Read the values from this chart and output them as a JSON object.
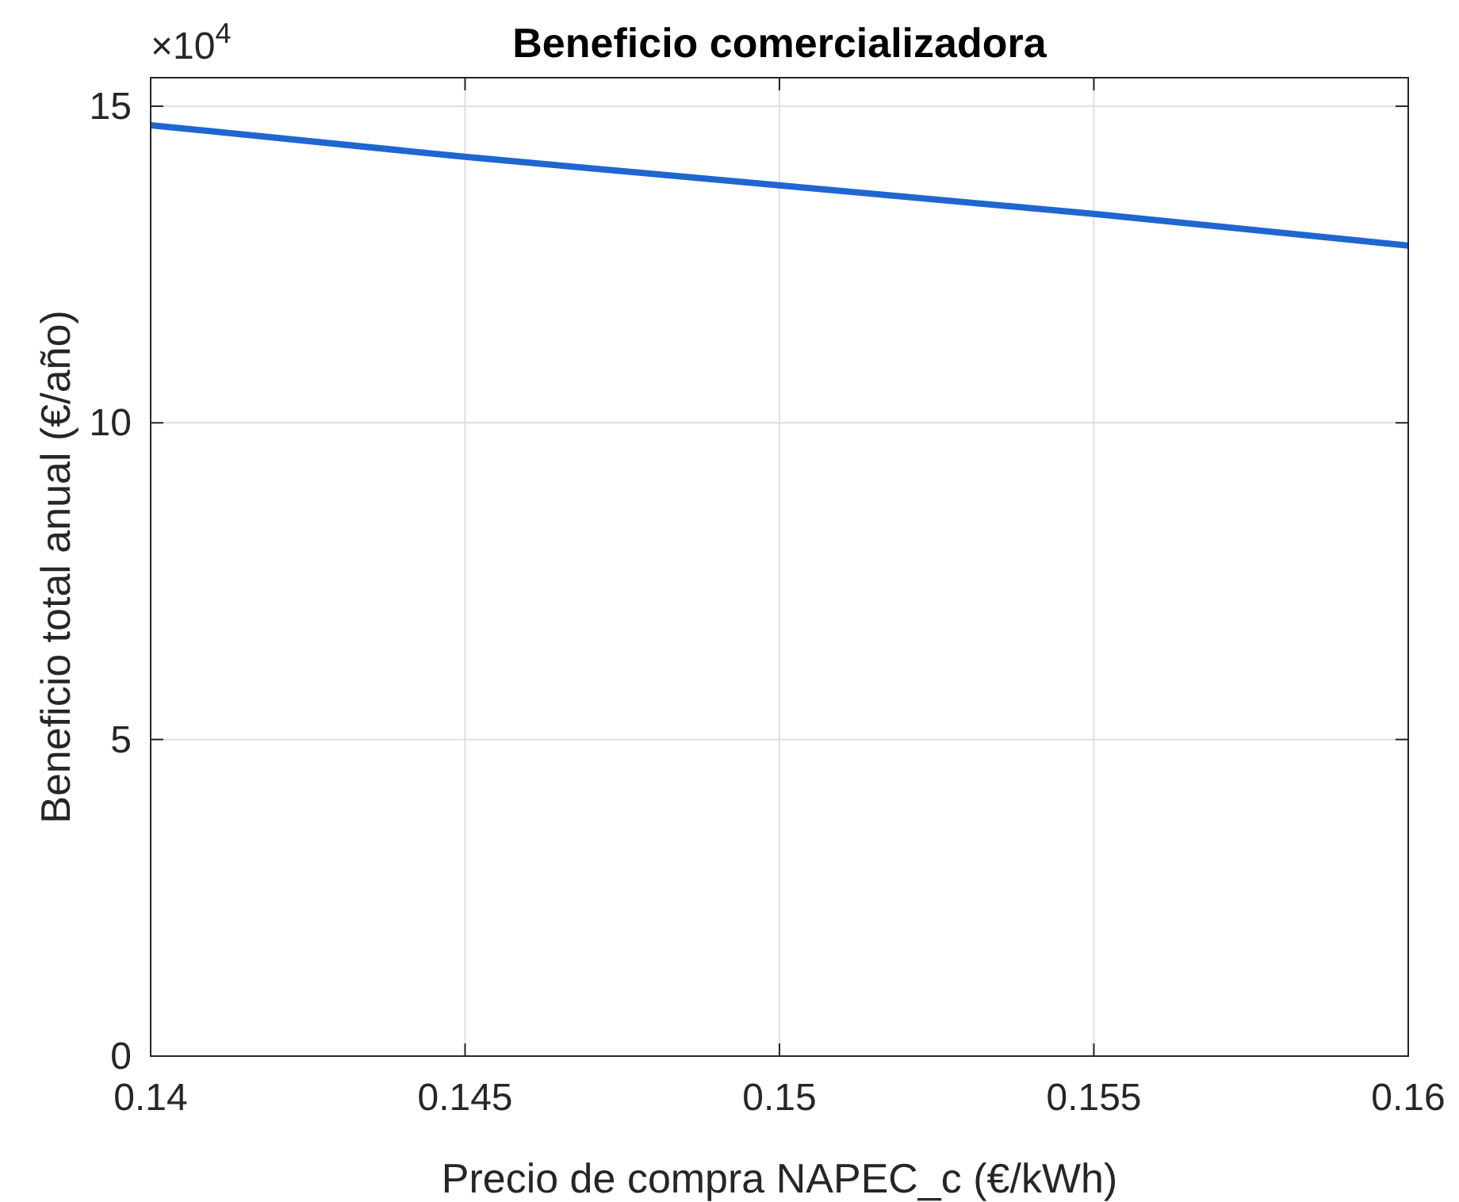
{
  "chart_data": {
    "type": "line",
    "title": "Beneficio comercializadora",
    "xlabel": "Precio de compra NAPEC_c (€/kWh)",
    "ylabel": "Beneficio total anual (€/año)",
    "x": [
      0.14,
      0.145,
      0.15,
      0.155,
      0.16
    ],
    "series": [
      {
        "color": "#1f66d0",
        "values": [
          14.7,
          14.2,
          13.75,
          13.3,
          12.8
        ]
      }
    ],
    "xlim": [
      0.14,
      0.16
    ],
    "xticks": [
      0.14,
      0.145,
      0.15,
      0.155,
      0.16
    ],
    "ylim": [
      0,
      15.45
    ],
    "yticks": [
      0,
      5,
      10,
      15
    ],
    "annotations": [
      "×10$^{4}$"
    ],
    "grid": true
  }
}
